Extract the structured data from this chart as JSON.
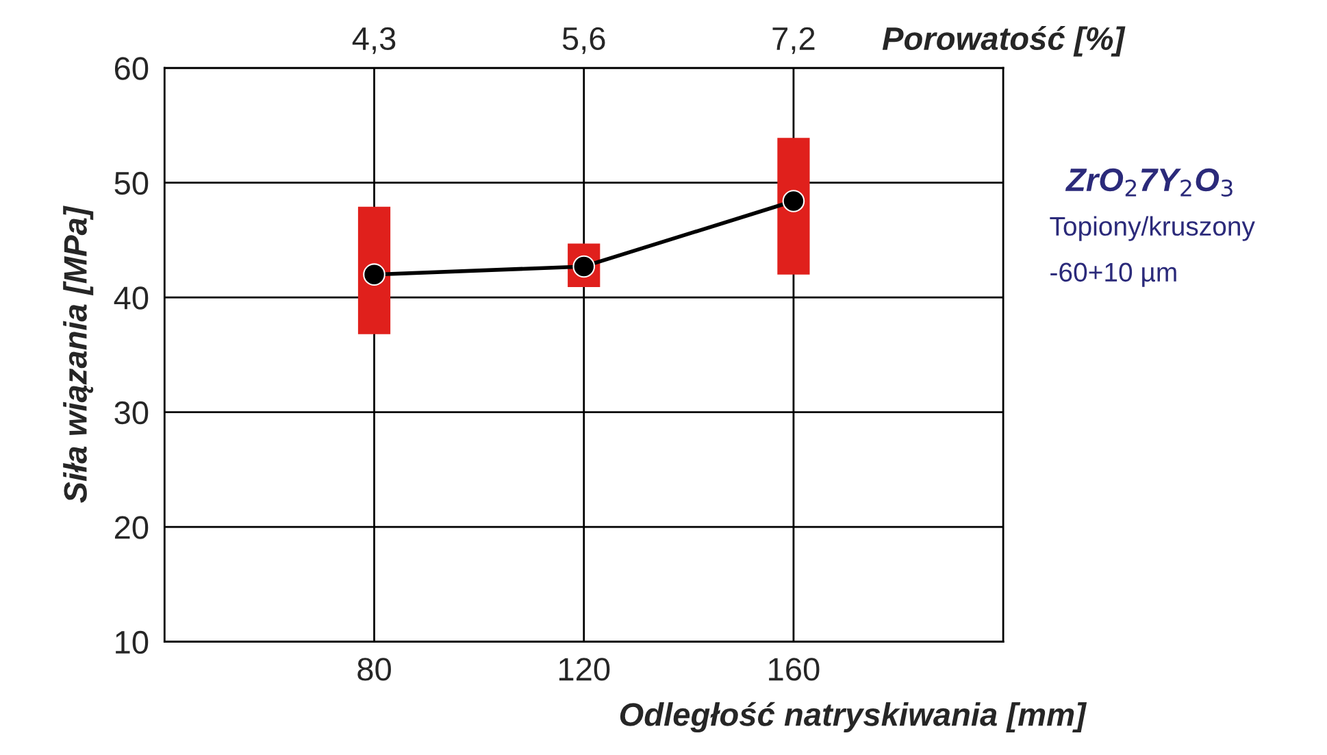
{
  "chart_data": {
    "type": "line",
    "xlabel": "Odległość natryskiwania [mm]",
    "ylabel": "Siła wiązania [MPa]",
    "x2label": "Porowatość [%]",
    "x": [
      80,
      120,
      160
    ],
    "series": [
      {
        "color": "#000000",
        "values": [
          42.0,
          42.7,
          48.4
        ],
        "errors": [
          [
            36.8,
            47.9
          ],
          [
            40.9,
            44.7
          ],
          [
            42.0,
            53.9
          ]
        ]
      }
    ],
    "xlim": [
      40,
      200
    ],
    "xticks": [
      80,
      120,
      160
    ],
    "ylim": [
      10,
      60
    ],
    "yticks": [
      10,
      20,
      30,
      40,
      50,
      60
    ],
    "grid": true,
    "marker": "circle",
    "line_style": "solid",
    "annotations": [
      "ZrO$_{2}$7Y$_{2}$O$_{3}$",
      "Topiony/kruszony",
      "-60+10 µm",
      "4,3",
      "5,6",
      "7,2"
    ]
  }
}
